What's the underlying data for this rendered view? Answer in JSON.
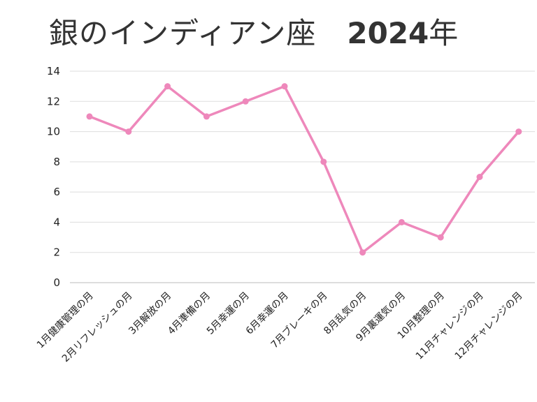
{
  "chart_data": {
    "type": "line",
    "title": "銀のインディアン座",
    "title_year": "2024",
    "title_year_suffix": "年",
    "categories": [
      "1月健康管理の月",
      "2月リフレッシュの月",
      "3月解放の月",
      "4月準備の月",
      "5月幸運の月",
      "6月幸運の月",
      "7月ブレーキの月",
      "8月乱気の月",
      "9月裏運気の月",
      "10月整理の月",
      "11月チャレンジの月",
      "12月チャレンジの月"
    ],
    "series": [
      {
        "values": [
          11,
          10,
          13,
          11,
          12,
          13,
          8,
          2,
          4,
          3,
          7,
          10
        ],
        "color": "#ee88bb"
      }
    ],
    "ylim": [
      0,
      14
    ],
    "yticks": [
      0,
      2,
      4,
      6,
      8,
      10,
      12,
      14
    ],
    "grid": true,
    "xlabel": "",
    "ylabel": ""
  }
}
